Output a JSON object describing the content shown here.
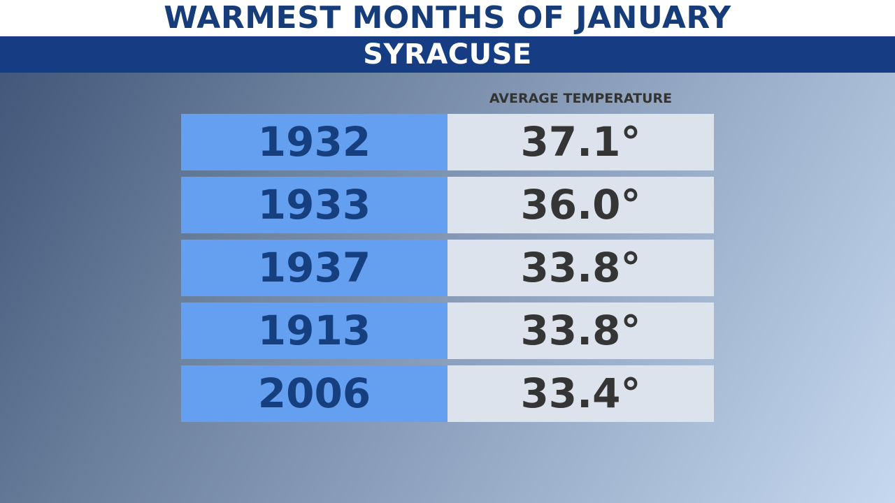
{
  "title": "WARMEST MONTHS OF JANUARY",
  "subtitle": "SYRACUSE",
  "column_header": "AVERAGE TEMPERATURE",
  "colors": {
    "title_text": "#163d7a",
    "subtitle_bar": "#163d84",
    "year_cell": "#659ff0",
    "temp_cell": "#dde3ec",
    "temp_text": "#353535"
  },
  "chart_data": {
    "type": "table",
    "title": "WARMEST MONTHS OF JANUARY",
    "subtitle": "SYRACUSE",
    "columns": [
      "",
      "AVERAGE TEMPERATURE"
    ],
    "rows": [
      {
        "year": "1932",
        "temp": "37.1°"
      },
      {
        "year": "1933",
        "temp": "36.0°"
      },
      {
        "year": "1937",
        "temp": "33.8°"
      },
      {
        "year": "1913",
        "temp": "33.8°"
      },
      {
        "year": "2006",
        "temp": "33.4°"
      }
    ]
  }
}
